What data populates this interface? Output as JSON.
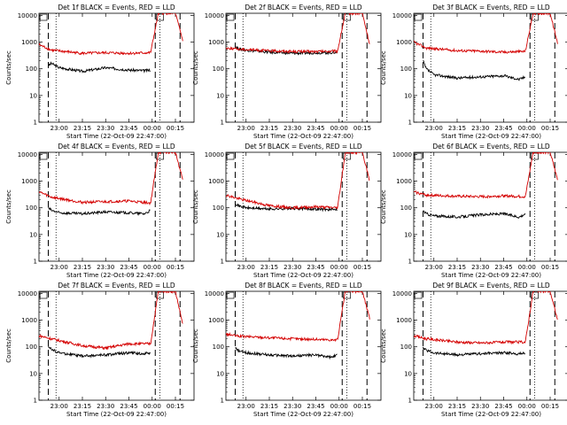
{
  "colors": {
    "events": "#000000",
    "lld": "#d40000",
    "background": "#ffffff",
    "axis": "#000000"
  },
  "chart_data": [
    {
      "type": "line",
      "title": "Det 1f BLACK = Events, RED = LLD",
      "ylabel": "Counts/sec",
      "xlabel": "Start Time (22-Oct-09 22:47:00)",
      "xticks": [
        "23:00",
        "23:15",
        "23:30",
        "23:45",
        "00:00",
        "00:15"
      ],
      "yticks": [
        "1",
        "10",
        "100",
        "1000",
        "10000"
      ],
      "yscale": "log",
      "ylim": [
        1,
        12000
      ],
      "series": [
        {
          "key": "events",
          "level": 100,
          "x": [
            "22:53",
            "22:55",
            "23:00",
            "23:15",
            "23:30",
            "23:45",
            "23:55",
            "23:59"
          ],
          "values": [
            130,
            160,
            110,
            80,
            110,
            90,
            85,
            90
          ]
        },
        {
          "key": "lld",
          "level": 400,
          "x": [
            "22:47",
            "22:55",
            "23:15",
            "23:30",
            "23:45",
            "23:59",
            "00:04",
            "00:15",
            "00:20"
          ],
          "values": [
            800,
            500,
            380,
            400,
            380,
            400,
            12000,
            12000,
            1000
          ]
        }
      ],
      "vlines_dashed": [
        "22:53",
        "00:02",
        "00:18"
      ],
      "vlines_dotted": [
        "22:58",
        "00:05"
      ]
    },
    {
      "type": "line",
      "title": "Det 2f BLACK = Events, RED = LLD",
      "ylabel": "Counts/sec",
      "xlabel": "Start Time (22-Oct-09 22:47:00)",
      "xticks": [
        "23:00",
        "23:15",
        "23:30",
        "23:45",
        "00:00",
        "00:15"
      ],
      "yticks": [
        "1",
        "10",
        "100",
        "1000",
        "10000"
      ],
      "yscale": "log",
      "ylim": [
        1,
        12000
      ],
      "series": [
        {
          "key": "events",
          "level": 400,
          "x": [
            "22:53",
            "22:55",
            "23:00",
            "23:15",
            "23:30",
            "23:45",
            "23:55",
            "23:59"
          ],
          "values": [
            700,
            550,
            500,
            420,
            380,
            400,
            400,
            420
          ]
        },
        {
          "key": "lld",
          "level": 450,
          "x": [
            "22:47",
            "22:55",
            "23:15",
            "23:30",
            "23:45",
            "23:59",
            "00:04",
            "00:15",
            "00:20"
          ],
          "values": [
            600,
            550,
            470,
            450,
            440,
            460,
            12000,
            12000,
            700
          ]
        }
      ],
      "vlines_dashed": [
        "22:53",
        "00:02",
        "00:18"
      ],
      "vlines_dotted": [
        "22:58",
        "00:05"
      ]
    },
    {
      "type": "line",
      "title": "Det 3f BLACK = Events, RED = LLD",
      "ylabel": "Counts/sec",
      "xlabel": "Start Time (22-Oct-09 22:47:00)",
      "xticks": [
        "23:00",
        "23:15",
        "23:30",
        "23:45",
        "00:00",
        "00:15"
      ],
      "yticks": [
        "1",
        "10",
        "100",
        "1000",
        "10000"
      ],
      "yscale": "log",
      "ylim": [
        1,
        12000
      ],
      "series": [
        {
          "key": "events",
          "level": 50,
          "x": [
            "22:53",
            "22:55",
            "23:00",
            "23:15",
            "23:30",
            "23:45",
            "23:55",
            "23:59"
          ],
          "values": [
            200,
            100,
            60,
            45,
            50,
            55,
            40,
            50
          ]
        },
        {
          "key": "lld",
          "level": 450,
          "x": [
            "22:47",
            "22:55",
            "23:15",
            "23:30",
            "23:45",
            "23:59",
            "00:04",
            "00:15",
            "00:20"
          ],
          "values": [
            1000,
            600,
            480,
            460,
            420,
            450,
            12000,
            12000,
            800
          ]
        }
      ],
      "vlines_dashed": [
        "22:53",
        "00:02",
        "00:18"
      ],
      "vlines_dotted": [
        "22:58",
        "00:05"
      ]
    },
    {
      "type": "line",
      "title": "Det 4f BLACK = Events, RED = LLD",
      "ylabel": "Counts/sec",
      "xlabel": "Start Time (22-Oct-09 22:47:00)",
      "xticks": [
        "23:00",
        "23:15",
        "23:30",
        "23:45",
        "00:00",
        "00:15"
      ],
      "yticks": [
        "1",
        "10",
        "100",
        "1000",
        "10000"
      ],
      "yscale": "log",
      "ylim": [
        1,
        12000
      ],
      "series": [
        {
          "key": "events",
          "level": 60,
          "x": [
            "22:53",
            "22:55",
            "23:00",
            "23:15",
            "23:30",
            "23:45",
            "23:55",
            "23:59"
          ],
          "values": [
            100,
            80,
            65,
            60,
            70,
            65,
            60,
            80
          ]
        },
        {
          "key": "lld",
          "level": 150,
          "x": [
            "22:47",
            "22:55",
            "23:15",
            "23:30",
            "23:45",
            "23:59",
            "00:04",
            "00:15",
            "00:20"
          ],
          "values": [
            400,
            250,
            160,
            170,
            180,
            150,
            12000,
            12000,
            1000
          ]
        }
      ],
      "vlines_dashed": [
        "22:53",
        "00:02",
        "00:18"
      ],
      "vlines_dotted": [
        "22:58",
        "00:05"
      ]
    },
    {
      "type": "line",
      "title": "Det 5f BLACK = Events, RED = LLD",
      "ylabel": "Counts/sec",
      "xlabel": "Start Time (22-Oct-09 22:47:00)",
      "xticks": [
        "23:00",
        "23:15",
        "23:30",
        "23:45",
        "00:00",
        "00:15"
      ],
      "yticks": [
        "1",
        "10",
        "100",
        "1000",
        "10000"
      ],
      "yscale": "log",
      "ylim": [
        1,
        12000
      ],
      "series": [
        {
          "key": "events",
          "level": 90,
          "x": [
            "22:53",
            "22:55",
            "23:00",
            "23:15",
            "23:30",
            "23:45",
            "23:55",
            "23:59"
          ],
          "values": [
            150,
            120,
            100,
            90,
            95,
            90,
            85,
            90
          ]
        },
        {
          "key": "lld",
          "level": 100,
          "x": [
            "22:47",
            "22:55",
            "23:15",
            "23:30",
            "23:45",
            "23:59",
            "00:04",
            "00:15",
            "00:20"
          ],
          "values": [
            300,
            220,
            120,
            100,
            110,
            100,
            12000,
            12000,
            900
          ]
        }
      ],
      "vlines_dashed": [
        "22:53",
        "00:02",
        "00:18"
      ],
      "vlines_dotted": [
        "22:58",
        "00:05"
      ]
    },
    {
      "type": "line",
      "title": "Det 6f BLACK = Events, RED = LLD",
      "ylabel": "Counts/sec",
      "xlabel": "Start Time (22-Oct-09 22:47:00)",
      "xticks": [
        "23:00",
        "23:15",
        "23:30",
        "23:45",
        "00:00",
        "00:15"
      ],
      "yticks": [
        "1",
        "10",
        "100",
        "1000",
        "10000"
      ],
      "yscale": "log",
      "ylim": [
        1,
        12000
      ],
      "series": [
        {
          "key": "events",
          "level": 50,
          "x": [
            "22:53",
            "22:55",
            "23:00",
            "23:15",
            "23:30",
            "23:45",
            "23:55",
            "23:59"
          ],
          "values": [
            80,
            60,
            50,
            45,
            55,
            60,
            45,
            60
          ]
        },
        {
          "key": "lld",
          "level": 250,
          "x": [
            "22:47",
            "22:55",
            "23:15",
            "23:30",
            "23:45",
            "23:59",
            "00:04",
            "00:15",
            "00:20"
          ],
          "values": [
            400,
            300,
            270,
            260,
            280,
            260,
            12000,
            12000,
            1000
          ]
        }
      ],
      "vlines_dashed": [
        "22:53",
        "00:02",
        "00:18"
      ],
      "vlines_dotted": [
        "22:58",
        "00:05"
      ]
    },
    {
      "type": "line",
      "title": "Det 7f BLACK = Events, RED = LLD",
      "ylabel": "Counts/sec",
      "xlabel": "Start Time (22-Oct-09 22:47:00)",
      "xticks": [
        "23:00",
        "23:15",
        "23:30",
        "23:45",
        "00:00",
        "00:15"
      ],
      "yticks": [
        "1",
        "10",
        "100",
        "1000",
        "10000"
      ],
      "yscale": "log",
      "ylim": [
        1,
        12000
      ],
      "series": [
        {
          "key": "events",
          "level": 50,
          "x": [
            "22:53",
            "22:55",
            "23:00",
            "23:15",
            "23:30",
            "23:45",
            "23:55",
            "23:59"
          ],
          "values": [
            110,
            80,
            60,
            45,
            50,
            60,
            55,
            60
          ]
        },
        {
          "key": "lld",
          "level": 100,
          "x": [
            "22:47",
            "22:55",
            "23:15",
            "23:30",
            "23:45",
            "23:59",
            "00:04",
            "00:15",
            "00:20"
          ],
          "values": [
            260,
            200,
            110,
            90,
            130,
            130,
            12000,
            12000,
            600
          ]
        }
      ],
      "vlines_dashed": [
        "22:53",
        "00:02",
        "00:18"
      ],
      "vlines_dotted": [
        "22:58",
        "00:05"
      ]
    },
    {
      "type": "line",
      "title": "Det 8f BLACK = Events, RED = LLD",
      "ylabel": "Counts/sec",
      "xlabel": "Start Time (22-Oct-09 22:47:00)",
      "xticks": [
        "23:00",
        "23:15",
        "23:30",
        "23:45",
        "00:00",
        "00:15"
      ],
      "yticks": [
        "1",
        "10",
        "100",
        "1000",
        "10000"
      ],
      "yscale": "log",
      "ylim": [
        1,
        12000
      ],
      "series": [
        {
          "key": "events",
          "level": 45,
          "x": [
            "22:53",
            "22:55",
            "23:00",
            "23:15",
            "23:30",
            "23:45",
            "23:55",
            "23:59"
          ],
          "values": [
            90,
            70,
            60,
            50,
            45,
            50,
            40,
            50
          ]
        },
        {
          "key": "lld",
          "level": 200,
          "x": [
            "22:47",
            "22:55",
            "23:15",
            "23:30",
            "23:45",
            "23:59",
            "00:04",
            "00:15",
            "00:20"
          ],
          "values": [
            300,
            250,
            220,
            200,
            190,
            180,
            12000,
            12000,
            1000
          ]
        }
      ],
      "vlines_dashed": [
        "22:53",
        "00:02",
        "00:18"
      ],
      "vlines_dotted": [
        "22:58",
        "00:05"
      ]
    },
    {
      "type": "line",
      "title": "Det 9f BLACK = Events, RED = LLD",
      "ylabel": "Counts/sec",
      "xlabel": "Start Time (22-Oct-09 22:47:00)",
      "xticks": [
        "23:00",
        "23:15",
        "23:30",
        "23:45",
        "00:00",
        "00:15"
      ],
      "yticks": [
        "1",
        "10",
        "100",
        "1000",
        "10000"
      ],
      "yscale": "log",
      "ylim": [
        1,
        12000
      ],
      "series": [
        {
          "key": "events",
          "level": 50,
          "x": [
            "22:53",
            "22:55",
            "23:00",
            "23:15",
            "23:30",
            "23:45",
            "23:55",
            "23:59"
          ],
          "values": [
            90,
            75,
            60,
            50,
            55,
            60,
            55,
            60
          ]
        },
        {
          "key": "lld",
          "level": 150,
          "x": [
            "22:47",
            "22:55",
            "23:15",
            "23:30",
            "23:45",
            "23:59",
            "00:04",
            "00:15",
            "00:20"
          ],
          "values": [
            260,
            200,
            150,
            140,
            150,
            150,
            12000,
            12000,
            900
          ]
        }
      ],
      "vlines_dashed": [
        "22:53",
        "00:02",
        "00:18"
      ],
      "vlines_dotted": [
        "22:58",
        "00:05"
      ]
    }
  ]
}
